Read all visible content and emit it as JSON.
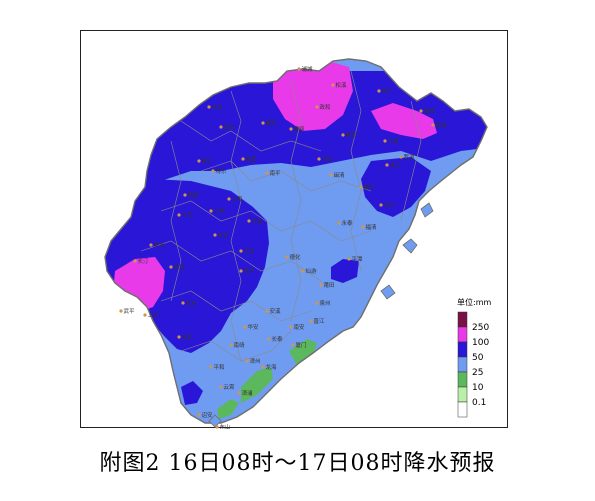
{
  "caption": "附图2 16日08时～17日08时降水预报",
  "legend": {
    "unit": "单位:mm",
    "items": [
      {
        "label": "250",
        "color": "#7a1043"
      },
      {
        "label": "100",
        "color": "#e83ae8"
      },
      {
        "label": "50",
        "color": "#2a16d6"
      },
      {
        "label": "25",
        "color": "#6f9cf0"
      },
      {
        "label": "10",
        "color": "#5cb85c"
      },
      {
        "label": "0.1",
        "color": "#b8f0a8"
      }
    ],
    "bottom_color": "#ffffff"
  },
  "colors": {
    "boundary": "#6e6e6e",
    "county": "#8a8a8a",
    "city_dot": "#d2934a"
  },
  "cities": [
    {
      "name": "浦城"
    },
    {
      "name": "松溪"
    },
    {
      "name": "政和"
    },
    {
      "name": "寿宁"
    },
    {
      "name": "福鼎"
    },
    {
      "name": "霞浦"
    },
    {
      "name": "光泽"
    },
    {
      "name": "邵武"
    },
    {
      "name": "建阳"
    },
    {
      "name": "建瓯"
    },
    {
      "name": "屏南"
    },
    {
      "name": "宁德"
    },
    {
      "name": "罗源"
    },
    {
      "name": "泰宁"
    },
    {
      "name": "将乐"
    },
    {
      "name": "顺昌"
    },
    {
      "name": "南平"
    },
    {
      "name": "古田"
    },
    {
      "name": "闽清"
    },
    {
      "name": "连江"
    },
    {
      "name": "宁化"
    },
    {
      "name": "明溪"
    },
    {
      "name": "三明"
    },
    {
      "name": "沙县"
    },
    {
      "name": "尤溪"
    },
    {
      "name": "福州"
    },
    {
      "name": "长乐"
    },
    {
      "name": "清流"
    },
    {
      "name": "永安"
    },
    {
      "name": "大田"
    },
    {
      "name": "永泰"
    },
    {
      "name": "福清"
    },
    {
      "name": "长汀"
    },
    {
      "name": "连城"
    },
    {
      "name": "漳平"
    },
    {
      "name": "德化"
    },
    {
      "name": "仙游"
    },
    {
      "name": "莆田"
    },
    {
      "name": "平潭"
    },
    {
      "name": "武平"
    },
    {
      "name": "上杭"
    },
    {
      "name": "龙岩"
    },
    {
      "name": "永定"
    },
    {
      "name": "安溪"
    },
    {
      "name": "南安"
    },
    {
      "name": "泉州"
    },
    {
      "name": "晋江"
    },
    {
      "name": "华安"
    },
    {
      "name": "长泰"
    },
    {
      "name": "厦门"
    },
    {
      "name": "平和"
    },
    {
      "name": "漳州"
    },
    {
      "name": "龙海"
    },
    {
      "name": "南靖"
    },
    {
      "name": "云霄"
    },
    {
      "name": "诏安"
    },
    {
      "name": "东山"
    },
    {
      "name": "漳浦"
    }
  ]
}
